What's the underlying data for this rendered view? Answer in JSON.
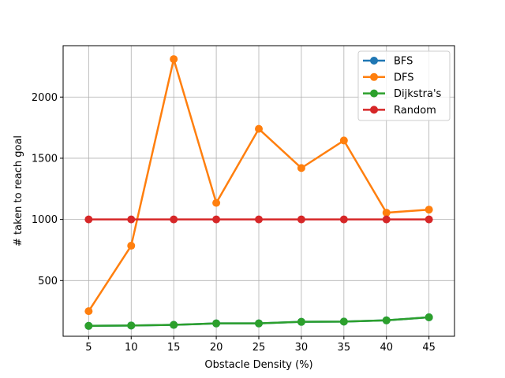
{
  "chart_data": {
    "type": "line",
    "title": "",
    "xlabel": "Obstacle Density (%)",
    "ylabel": "# taken to reach goal",
    "x": [
      5,
      10,
      15,
      20,
      25,
      30,
      35,
      40,
      45
    ],
    "xticks": [
      5,
      10,
      15,
      20,
      25,
      30,
      35,
      40,
      45
    ],
    "yticks": [
      500,
      1000,
      1500,
      2000
    ],
    "xlim": [
      2.0,
      48.0
    ],
    "ylim": [
      45,
      2420
    ],
    "grid": true,
    "legend_position": "top-right",
    "series": [
      {
        "name": "BFS",
        "color": "#1f77b4",
        "values": [
          130,
          133,
          138,
          150,
          150,
          163,
          165,
          175,
          200
        ]
      },
      {
        "name": "DFS",
        "color": "#ff7f0e",
        "values": [
          250,
          785,
          2310,
          1135,
          1740,
          1420,
          1645,
          1055,
          1080
        ]
      },
      {
        "name": "Dijkstra's",
        "color": "#2ca02c",
        "values": [
          130,
          133,
          138,
          150,
          150,
          163,
          165,
          175,
          200
        ]
      },
      {
        "name": "Random",
        "color": "#d62728",
        "values": [
          1000,
          1000,
          1000,
          1000,
          1000,
          1000,
          1000,
          1000,
          1000
        ]
      }
    ]
  }
}
